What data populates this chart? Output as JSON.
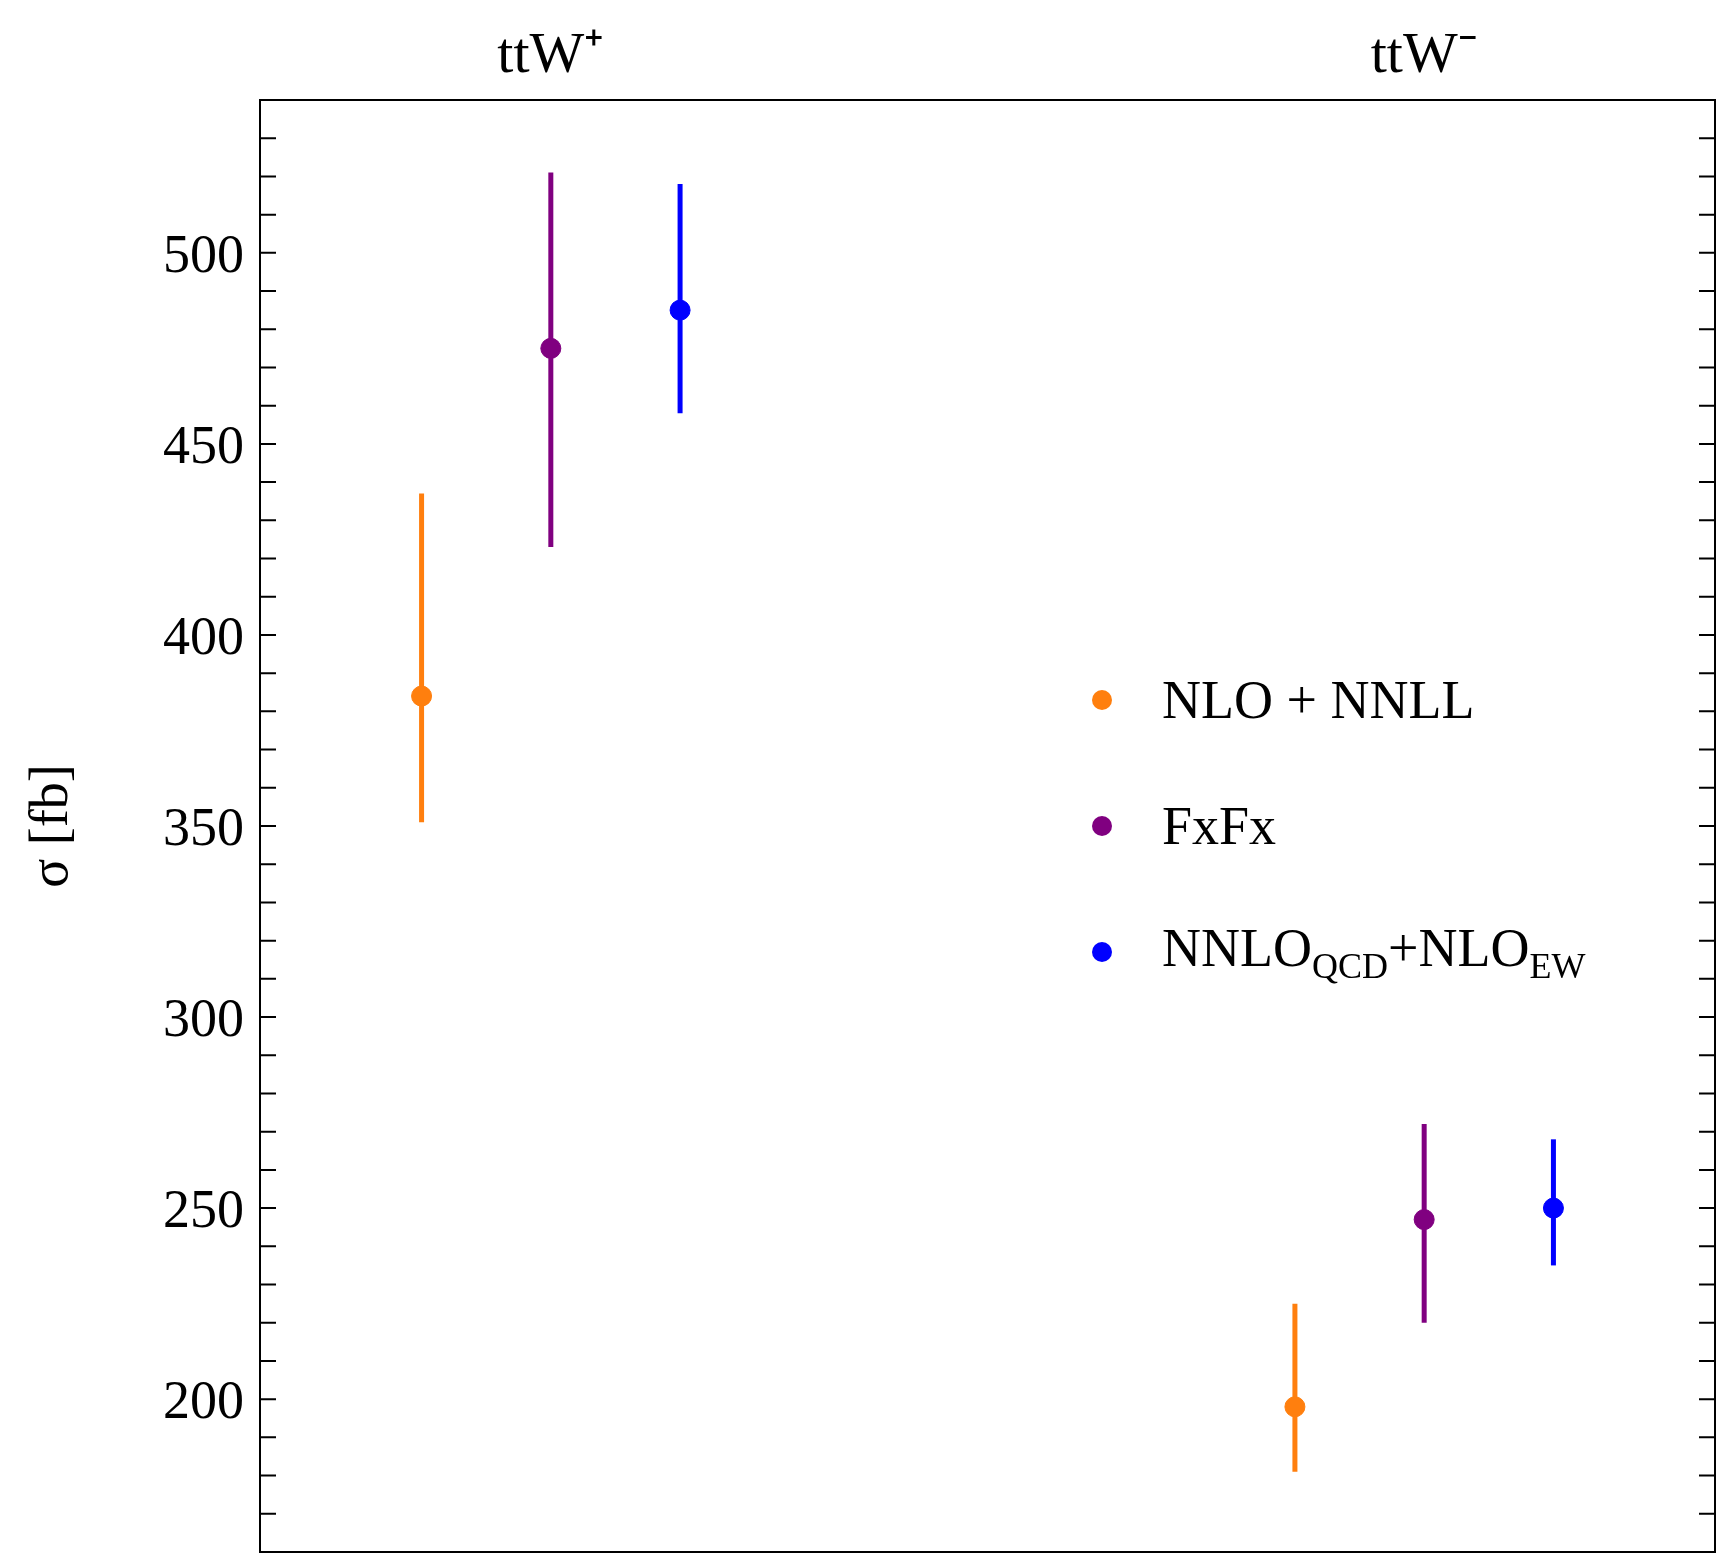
{
  "chart_data": {
    "type": "scatter",
    "ylabel": "σ [fb]",
    "categories": [
      "ttW⁺",
      "ttW⁻"
    ],
    "marker": "circle",
    "legend": "right",
    "ylim": [
      160,
      540
    ],
    "yticks": [
      {
        "value": 160,
        "label": null
      },
      {
        "value": 170,
        "label": null
      },
      {
        "value": 180,
        "label": null
      },
      {
        "value": 190,
        "label": null
      },
      200,
      {
        "value": 210,
        "label": null
      },
      {
        "value": 220,
        "label": null
      },
      {
        "value": 230,
        "label": null
      },
      {
        "value": 240,
        "label": null
      },
      250,
      {
        "value": 260,
        "label": null
      },
      {
        "value": 270,
        "label": null
      },
      {
        "value": 280,
        "label": null
      },
      {
        "value": 290,
        "label": null
      },
      300,
      {
        "value": 310,
        "label": null
      },
      {
        "value": 320,
        "label": null
      },
      {
        "value": 330,
        "label": null
      },
      {
        "value": 340,
        "label": null
      },
      350,
      {
        "value": 360,
        "label": null
      },
      {
        "value": 370,
        "label": null
      },
      {
        "value": 380,
        "label": null
      },
      {
        "value": 390,
        "label": null
      },
      400,
      {
        "value": 410,
        "label": null
      },
      {
        "value": 420,
        "label": null
      },
      {
        "value": 430,
        "label": null
      },
      {
        "value": 440,
        "label": null
      },
      450,
      {
        "value": 460,
        "label": null
      },
      {
        "value": 470,
        "label": null
      },
      {
        "value": 480,
        "label": null
      },
      {
        "value": 490,
        "label": null
      },
      500,
      {
        "value": 510,
        "label": null
      },
      {
        "value": 520,
        "label": null
      },
      {
        "value": 530,
        "label": null
      },
      {
        "value": 540,
        "label": null
      }
    ],
    "series": [
      {
        "name": "NLO + NNLL",
        "color": "#ff7f0e",
        "values": [
          384,
          198
        ],
        "errors": [
          [
            351,
            437
          ],
          [
            181,
            225
          ]
        ]
      },
      {
        "name": "FxFx",
        "color": "#800080",
        "values": [
          475,
          247
        ],
        "errors": [
          [
            423,
            521
          ],
          [
            220,
            272
          ]
        ]
      },
      {
        "name": "NNLO$_{QCD}$+NLO$_{EW}$",
        "color": "#0000ff",
        "values": [
          485,
          250
        ],
        "errors": [
          [
            458,
            518
          ],
          [
            235,
            268
          ]
        ]
      }
    ]
  }
}
